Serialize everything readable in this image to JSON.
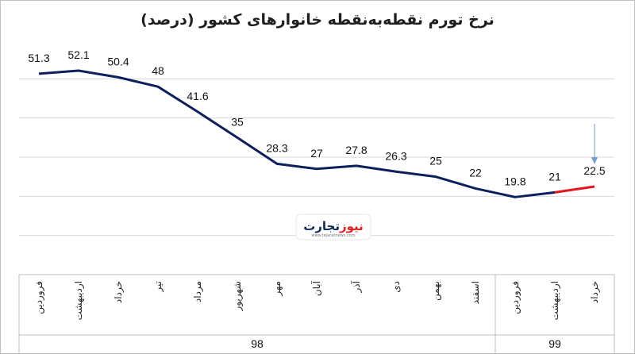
{
  "chart_data": {
    "type": "line",
    "title": "نرخ تورم نقطه‌به‌نقطه خانوارهای کشور (درصد)",
    "xlabel": "",
    "ylabel": "",
    "ylim": [
      0,
      60
    ],
    "grid": true,
    "categories": [
      "فروردین",
      "اردیبهشت",
      "خرداد",
      "تیر",
      "مرداد",
      "شهریور",
      "مهر",
      "آبان",
      "آذر",
      "دی",
      "بهمن",
      "اسفند",
      "فروردین",
      "اردیبهشت",
      "خرداد"
    ],
    "groups": [
      {
        "label": "98",
        "count": 12
      },
      {
        "label": "99",
        "count": 3
      }
    ],
    "series": [
      {
        "values": [
          51.3,
          52.1,
          50.4,
          48,
          41.6,
          35,
          28.3,
          27,
          27.8,
          26.3,
          25,
          22,
          19.8,
          21,
          22.5
        ],
        "highlight_from": 13,
        "color": "#0d1f5c",
        "highlight_color": "#e8131b"
      }
    ],
    "value_labels": [
      "51.3",
      "52.1",
      "50.4",
      "48",
      "41.6",
      "35",
      "28.3",
      "27",
      "27.8",
      "26.3",
      "25",
      "22",
      "19.8",
      "21",
      "22.5"
    ],
    "arrow_color": "#6fa0d0",
    "gridline_color": "#d9d9d9"
  },
  "watermark": {
    "text_dark": "تجارت",
    "text_accent": "نیوز",
    "url": "www.tejaratnews.com",
    "dark_color": "#0d2a57",
    "accent_color": "#e31b23"
  }
}
